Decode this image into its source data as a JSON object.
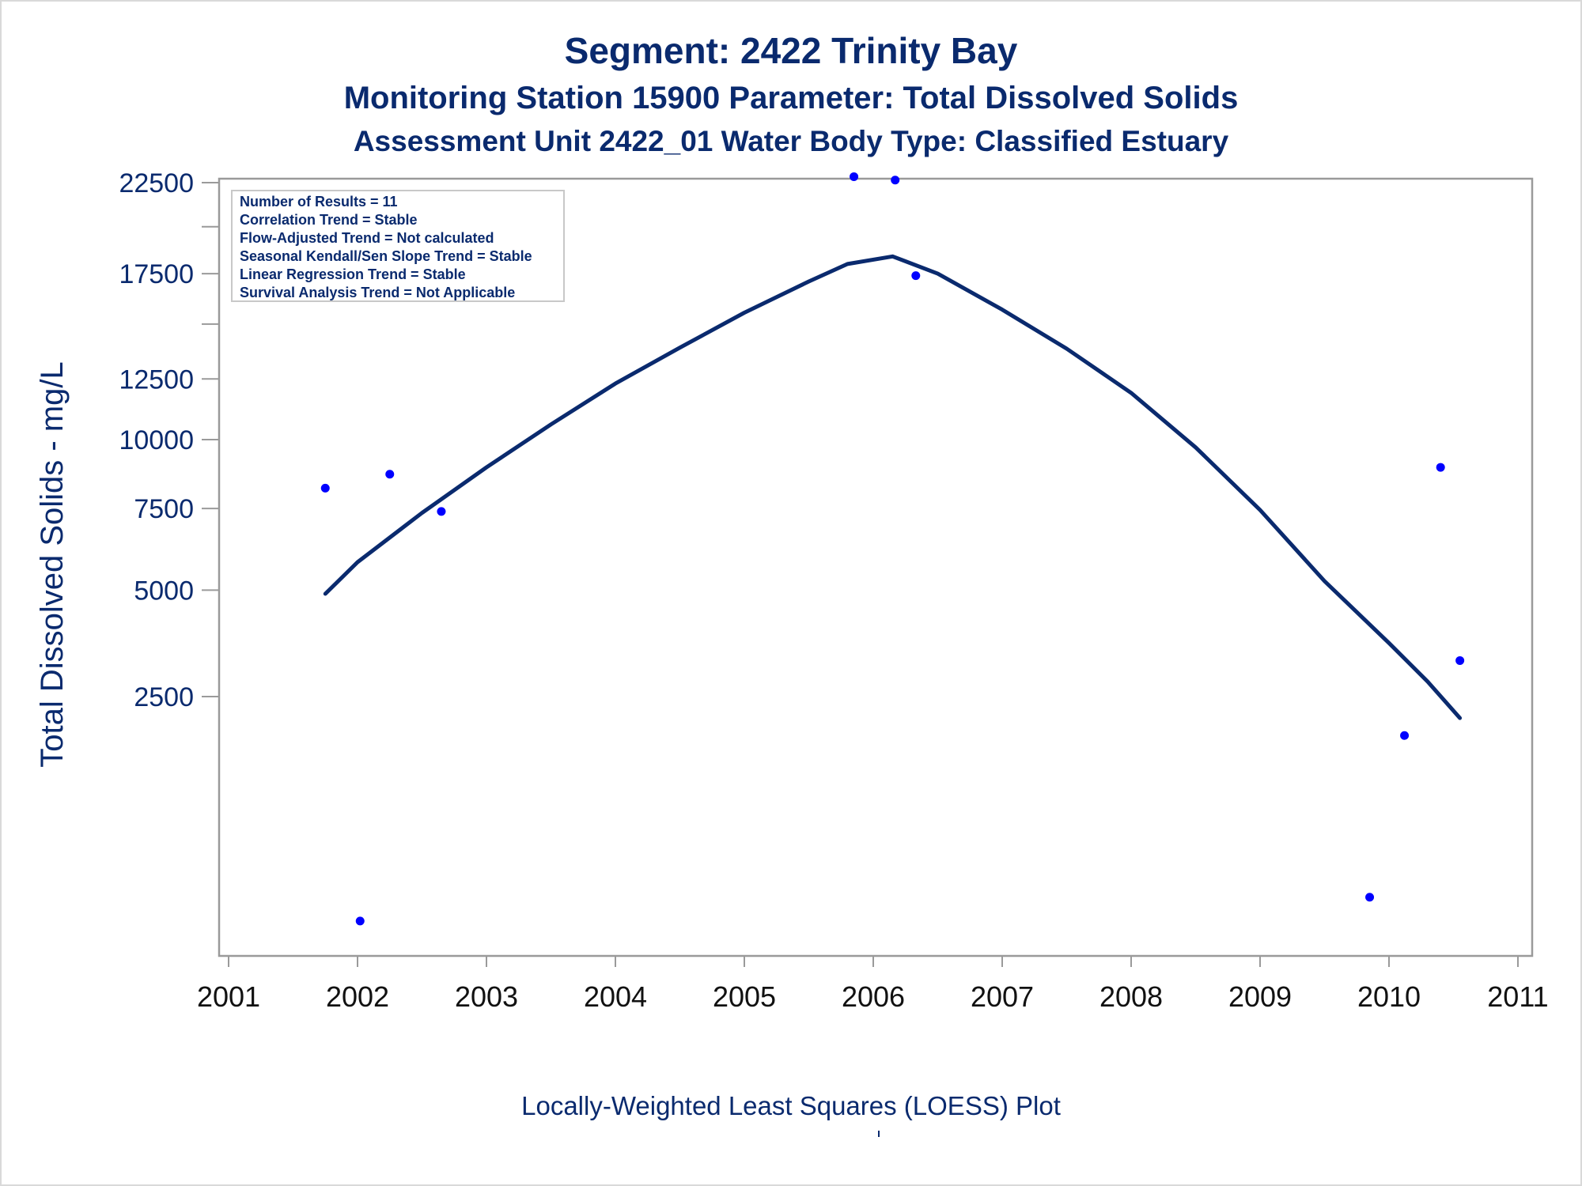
{
  "header": {
    "title": "Segment: 2422  Trinity Bay",
    "subtitle": "Monitoring Station 15900 Parameter: Total Dissolved Solids",
    "subtitle2": "Assessment Unit 2422_01   Water Body Type: Classified Estuary"
  },
  "footnote": "Locally-Weighted Least Squares (LOESS) Plot",
  "stats_box": [
    "Number of Results = 11",
    "Correlation Trend = Stable",
    "Flow-Adjusted Trend = Not calculated",
    "Seasonal Kendall/Sen Slope Trend = Stable",
    "Linear Regression Trend = Stable",
    "Survival Analysis Trend = Not Applicable"
  ],
  "colors": {
    "text": "#0a2a6e",
    "points": "#0000ff",
    "loess_line": "#0a2a6e",
    "axis": "#9a9a9a"
  },
  "chart_data": {
    "type": "scatter",
    "ylabel": "Total Dissolved Solids - mg/L",
    "xlabel": "",
    "y_scale": "sqrt",
    "xlim": [
      2001,
      2011
    ],
    "ylim": [
      0,
      23000
    ],
    "x_ticks": [
      "2001",
      "2002",
      "2003",
      "2004",
      "2005",
      "2006",
      "2007",
      "2008",
      "2009",
      "2010",
      "2011"
    ],
    "y_ticks": [
      {
        "value": 2500,
        "label": "2500"
      },
      {
        "value": 5000,
        "label": "5000"
      },
      {
        "value": 7500,
        "label": "7500"
      },
      {
        "value": 10000,
        "label": "10000"
      },
      {
        "value": 12500,
        "label": "12500"
      },
      {
        "value": 17500,
        "label": "17500"
      },
      {
        "value": 22500,
        "label": "22500"
      }
    ],
    "y_minor_ticks": [
      15000,
      20000
    ],
    "series": [
      {
        "kind": "points",
        "points": [
          {
            "x": 2001.75,
            "y": 8200
          },
          {
            "x": 2002.02,
            "y": 40
          },
          {
            "x": 2002.25,
            "y": 8700
          },
          {
            "x": 2002.65,
            "y": 7400
          },
          {
            "x": 2005.85,
            "y": 22850
          },
          {
            "x": 2006.17,
            "y": 22650
          },
          {
            "x": 2006.33,
            "y": 17400
          },
          {
            "x": 2009.85,
            "y": 120
          },
          {
            "x": 2010.12,
            "y": 1800
          },
          {
            "x": 2010.4,
            "y": 8950
          },
          {
            "x": 2010.55,
            "y": 3250
          }
        ]
      },
      {
        "kind": "loess",
        "points": [
          {
            "x": 2001.75,
            "y": 4900
          },
          {
            "x": 2002.0,
            "y": 5800
          },
          {
            "x": 2002.5,
            "y": 7350
          },
          {
            "x": 2003.0,
            "y": 8950
          },
          {
            "x": 2003.5,
            "y": 10600
          },
          {
            "x": 2004.0,
            "y": 12300
          },
          {
            "x": 2004.5,
            "y": 13900
          },
          {
            "x": 2005.0,
            "y": 15550
          },
          {
            "x": 2005.5,
            "y": 17100
          },
          {
            "x": 2005.8,
            "y": 18000
          },
          {
            "x": 2006.15,
            "y": 18400
          },
          {
            "x": 2006.5,
            "y": 17500
          },
          {
            "x": 2007.0,
            "y": 15700
          },
          {
            "x": 2007.5,
            "y": 13850
          },
          {
            "x": 2008.0,
            "y": 11900
          },
          {
            "x": 2008.5,
            "y": 9700
          },
          {
            "x": 2009.0,
            "y": 7450
          },
          {
            "x": 2009.5,
            "y": 5250
          },
          {
            "x": 2010.0,
            "y": 3650
          },
          {
            "x": 2010.3,
            "y": 2800
          },
          {
            "x": 2010.55,
            "y": 2100
          }
        ]
      }
    ]
  }
}
